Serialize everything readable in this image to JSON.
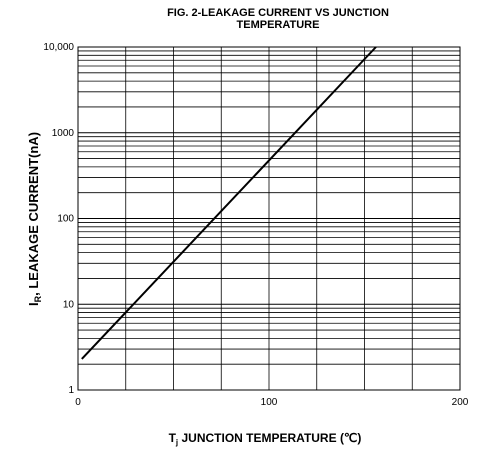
{
  "chart_data": {
    "type": "line",
    "title_line1": "FIG. 2-LEAKAGE CURRENT VS JUNCTION",
    "title_line2": "TEMPERATURE",
    "ylabel_main": "I",
    "ylabel_sub": "R",
    "ylabel_rest": ", LEAKAGE CURRENT(nA)",
    "xlabel_main": "T",
    "xlabel_sub": "j",
    "xlabel_rest": " JUNCTION TEMPERATURE (℃)",
    "x_scale": "linear",
    "y_scale": "log",
    "xlim": [
      0,
      200
    ],
    "ylim": [
      1,
      10000
    ],
    "x_ticks": [
      {
        "value": 0,
        "label": "0"
      },
      {
        "value": 100,
        "label": "100"
      },
      {
        "value": 200,
        "label": "200"
      }
    ],
    "y_ticks": [
      {
        "value": 1,
        "label": "1"
      },
      {
        "value": 10,
        "label": "10"
      },
      {
        "value": 100,
        "label": "100"
      },
      {
        "value": 1000,
        "label": "1000"
      },
      {
        "value": 10000,
        "label": "10,000"
      }
    ],
    "grid": true,
    "legend": "none",
    "series": [
      {
        "color": "#000000",
        "x": [
          2,
          156
        ],
        "y": [
          2.3,
          10000
        ]
      }
    ]
  }
}
